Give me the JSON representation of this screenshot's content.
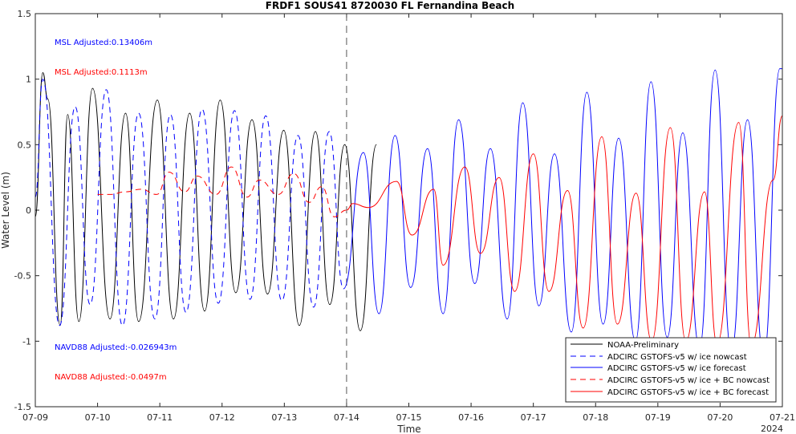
{
  "chart_data": {
    "type": "line",
    "title": "FRDF1 SOUS41 8720030 FL Fernandina Beach",
    "xlabel": "Time",
    "ylabel": "Water Level (m)",
    "year_label": "2024",
    "x_tick_labels": [
      "07-09",
      "07-10",
      "07-11",
      "07-12",
      "07-13",
      "07-14",
      "07-15",
      "07-16",
      "07-17",
      "07-18",
      "07-19",
      "07-20",
      "07-21"
    ],
    "xlim": [
      0,
      12
    ],
    "ylim": [
      -1.5,
      1.5
    ],
    "y_ticks": [
      -1.5,
      -1,
      -0.5,
      0,
      0.5,
      1,
      1.5
    ],
    "y_tick_labels": [
      "-1.5",
      "-1",
      "-0.5",
      "0",
      "0.5",
      "1",
      "1.5"
    ],
    "nowcast_forecast_split": 5,
    "legend_position": "bottom-right",
    "annotations": [
      {
        "text": "MSL Adjusted:0.13406m",
        "color": "#0000ff"
      },
      {
        "text": "MSL Adjusted:0.1113m",
        "color": "#ff0000"
      },
      {
        "text": "NAVD88 Adjusted:-0.026943m",
        "color": "#0000ff"
      },
      {
        "text": "NAVD88 Adjusted:-0.0497m",
        "color": "#ff0000"
      }
    ],
    "series": [
      {
        "name": "NOAA-Preliminary",
        "color": "#000000",
        "dash": "solid",
        "x": [
          0.0,
          0.12,
          0.2,
          0.4,
          0.52,
          0.7,
          0.92,
          1.2,
          1.45,
          1.66,
          1.96,
          2.22,
          2.48,
          2.72,
          2.97,
          3.22,
          3.48,
          3.73,
          3.99,
          4.24,
          4.5,
          4.73,
          4.97,
          5.22,
          5.48
        ],
        "y": [
          -0.05,
          1.05,
          0.85,
          -0.88,
          0.73,
          -0.85,
          0.93,
          -0.83,
          0.74,
          -0.85,
          0.84,
          -0.83,
          0.74,
          -0.77,
          0.84,
          -0.63,
          0.69,
          -0.64,
          0.61,
          -0.88,
          0.6,
          -0.72,
          0.5,
          -0.92,
          0.5
        ]
      },
      {
        "name": "ADCIRC GSTOFS-v5 w/ ice nowcast",
        "color": "#0000ff",
        "dash": "7,5",
        "x": [
          0.0,
          0.12,
          0.39,
          0.64,
          0.88,
          1.14,
          1.4,
          1.66,
          1.92,
          2.17,
          2.42,
          2.68,
          2.94,
          3.2,
          3.45,
          3.7,
          3.96,
          4.22,
          4.47,
          4.72,
          4.95
        ],
        "y": [
          0.1,
          1.0,
          -0.88,
          0.79,
          -0.72,
          0.92,
          -0.88,
          0.74,
          -0.83,
          0.73,
          -0.78,
          0.77,
          -0.71,
          0.76,
          -0.68,
          0.72,
          -0.69,
          0.57,
          -0.74,
          0.6,
          -0.6
        ]
      },
      {
        "name": "ADCIRC GSTOFS-v5 w/ ice forecast",
        "color": "#0000ff",
        "dash": "solid",
        "x": [
          4.95,
          5.27,
          5.52,
          5.78,
          6.03,
          6.3,
          6.55,
          6.8,
          7.06,
          7.31,
          7.58,
          7.83,
          8.09,
          8.34,
          8.61,
          8.86,
          9.12,
          9.37,
          9.64,
          9.89,
          10.15,
          10.4,
          10.67,
          10.92,
          11.18,
          11.44,
          11.7,
          11.96,
          12.0
        ],
        "y": [
          -0.6,
          0.44,
          -0.79,
          0.57,
          -0.59,
          0.47,
          -0.79,
          0.69,
          -0.56,
          0.47,
          -0.83,
          0.82,
          -0.73,
          0.43,
          -0.93,
          0.9,
          -0.87,
          0.55,
          -1.0,
          0.98,
          -0.97,
          0.59,
          -1.05,
          1.07,
          -1.08,
          0.69,
          -1.12,
          1.08,
          1.08
        ]
      },
      {
        "name": "ADCIRC GSTOFS-v5 w/ ice + BC nowcast",
        "color": "#ff0000",
        "dash": "7,5",
        "x": [
          1.0,
          1.2,
          1.45,
          1.7,
          1.95,
          2.15,
          2.4,
          2.6,
          2.9,
          3.15,
          3.4,
          3.6,
          3.9,
          4.15,
          4.4,
          4.6,
          4.8,
          5.0
        ],
        "y": [
          0.12,
          0.12,
          0.14,
          0.16,
          0.12,
          0.29,
          0.14,
          0.26,
          0.12,
          0.33,
          0.1,
          0.23,
          0.12,
          0.28,
          0.06,
          0.18,
          -0.05,
          0.0
        ]
      },
      {
        "name": "ADCIRC GSTOFS-v5 w/ ice + BC forecast",
        "color": "#ff0000",
        "dash": "solid",
        "x": [
          5.0,
          5.1,
          5.35,
          5.8,
          6.05,
          6.4,
          6.55,
          6.9,
          7.15,
          7.45,
          7.7,
          8.0,
          8.25,
          8.55,
          8.8,
          9.1,
          9.35,
          9.65,
          9.9,
          10.2,
          10.45,
          10.75,
          10.95,
          11.3,
          11.5,
          11.85,
          12.0
        ],
        "y": [
          0.0,
          0.05,
          0.02,
          0.22,
          -0.19,
          0.16,
          -0.42,
          0.33,
          -0.33,
          0.25,
          -0.62,
          0.43,
          -0.62,
          0.15,
          -0.9,
          0.56,
          -0.87,
          0.13,
          -1.0,
          0.63,
          -1.0,
          0.14,
          -1.02,
          0.67,
          -1.03,
          0.23,
          0.72
        ]
      }
    ]
  }
}
